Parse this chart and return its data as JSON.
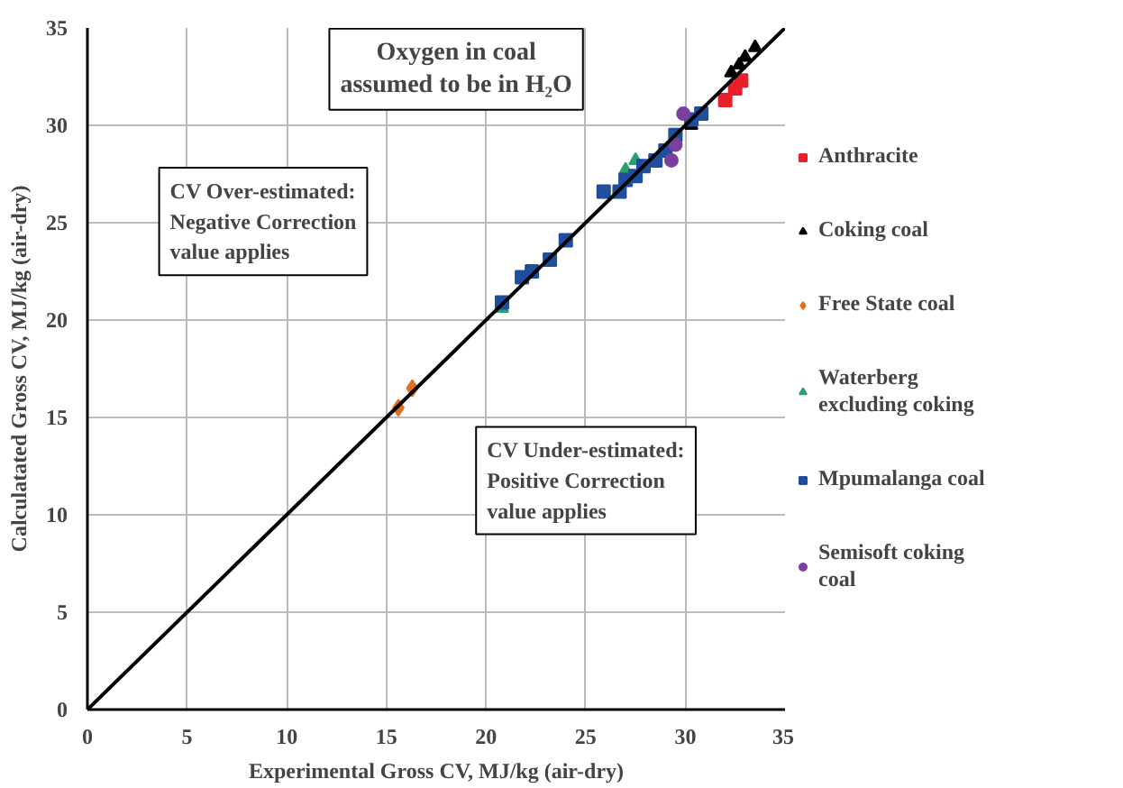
{
  "chart_data": {
    "type": "scatter",
    "xlabel": "Experimental Gross CV, MJ/kg (air-dry)",
    "ylabel": "Calculatated Gross CV, MJ/kg (air-dry)",
    "xlim": [
      0,
      35
    ],
    "ylim": [
      0,
      35
    ],
    "xticks": [
      0,
      5,
      10,
      15,
      20,
      25,
      30,
      35
    ],
    "yticks": [
      0,
      5,
      10,
      15,
      20,
      25,
      30,
      35
    ],
    "grid": true,
    "legend": "right",
    "annotations": [
      "Oxygen in coal assumed to be in H₂O",
      "CV Over-estimated: Negative Correction value applies",
      "CV Under-estimated: Positive Correction value applies"
    ],
    "series": [
      {
        "name": "Anthracite",
        "color": "#e8202a",
        "marker": "square",
        "x": [
          32.0,
          32.5,
          32.8
        ],
        "values": [
          31.3,
          31.9,
          32.3
        ]
      },
      {
        "name": "Coking coal",
        "color": "#000000",
        "marker": "triangle",
        "x": [
          30.3,
          32.3,
          32.7,
          33.0,
          33.5
        ],
        "values": [
          30.0,
          32.7,
          33.1,
          33.5,
          34.0
        ]
      },
      {
        "name": "Free State coal",
        "color": "#e07020",
        "marker": "diamond",
        "x": [
          15.6,
          16.3
        ],
        "values": [
          15.5,
          16.5
        ]
      },
      {
        "name": "Waterberg excluding coking",
        "color": "#2aa070",
        "marker": "triangle",
        "x": [
          20.8,
          27.0,
          27.5
        ],
        "values": [
          20.6,
          27.7,
          28.2
        ]
      },
      {
        "name": "Mpumalanga coal",
        "color": "#1f4e9e",
        "marker": "square",
        "x": [
          20.8,
          21.8,
          22.3,
          23.2,
          24.0,
          25.9,
          26.7,
          27.0,
          27.5,
          27.9,
          28.5,
          29.0,
          29.5,
          30.3,
          30.8
        ],
        "values": [
          20.9,
          22.2,
          22.5,
          23.1,
          24.1,
          26.6,
          26.6,
          27.2,
          27.4,
          27.9,
          28.2,
          28.7,
          29.5,
          30.3,
          30.6
        ]
      },
      {
        "name": "Semisoft coking coal",
        "color": "#7b3f9e",
        "marker": "circle",
        "x": [
          29.3,
          29.5,
          29.9
        ],
        "values": [
          28.2,
          29.0,
          30.6
        ]
      },
      {
        "type": "line",
        "color": "#000000",
        "marker": "none",
        "x": [
          0,
          35
        ],
        "values": [
          0,
          35
        ]
      }
    ]
  }
}
